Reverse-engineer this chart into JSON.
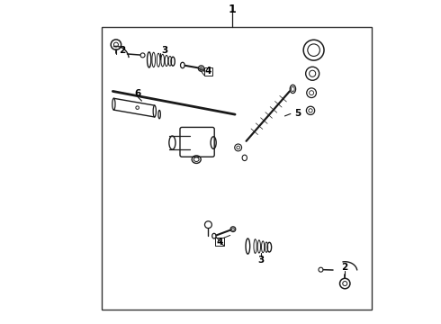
{
  "bg_color": "#ffffff",
  "line_color": "#1a1a1a",
  "border_color": "#333333",
  "label_color": "#000000",
  "fig_width": 4.9,
  "fig_height": 3.6,
  "dpi": 100,
  "label_fontsize": 7.5,
  "title_fontsize": 9
}
